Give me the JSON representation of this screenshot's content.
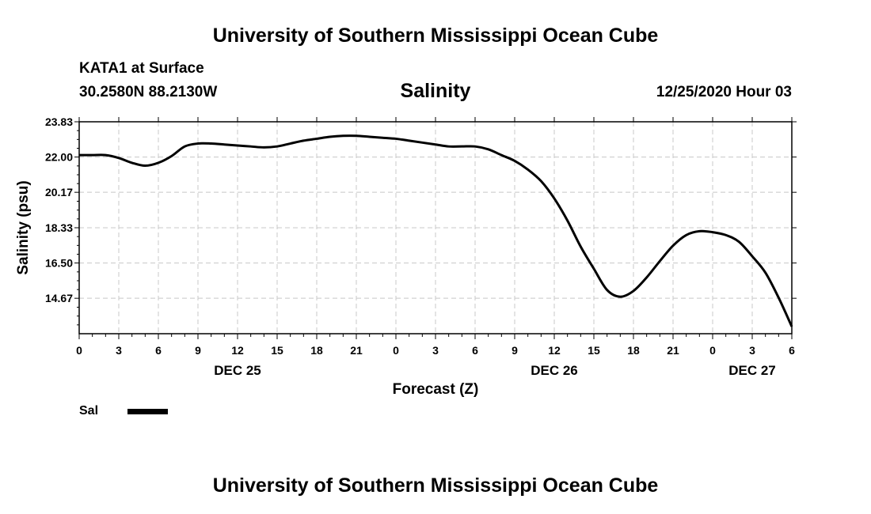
{
  "page": {
    "top_title": "University of Southern Mississippi Ocean Cube",
    "bottom_title": "University of Southern Mississippi Ocean Cube",
    "station_name": "KATA1 at Surface",
    "station_coords": "30.2580N 88.2130W",
    "chart_time": "12/25/2020 Hour 03"
  },
  "chart_data": {
    "type": "line",
    "title": "Salinity",
    "xlabel": "Forecast (Z)",
    "ylabel": "Salinity (psu)",
    "ylim": [
      12.83,
      23.83
    ],
    "yticks": [
      "23.83",
      "22.00",
      "20.17",
      "18.33",
      "16.50",
      "14.67"
    ],
    "xticks": [
      "0",
      "3",
      "6",
      "9",
      "12",
      "15",
      "18",
      "21",
      "0",
      "3",
      "6",
      "9",
      "12",
      "15",
      "18",
      "21",
      "0",
      "3",
      "6"
    ],
    "date_labels": [
      {
        "label": "DEC 25",
        "tick_index": 4
      },
      {
        "label": "DEC 26",
        "tick_index": 12
      },
      {
        "label": "DEC 27",
        "tick_index": 17
      }
    ],
    "grid": true,
    "legend": "bottom-left",
    "series": [
      {
        "name": "Sal",
        "color": "#000000",
        "x": [
          0,
          1,
          2,
          3,
          4,
          5,
          6,
          7,
          8,
          9,
          10,
          11,
          12,
          13,
          14,
          15,
          16,
          17,
          18,
          19,
          20,
          21,
          22,
          23,
          24,
          25,
          26,
          27,
          28,
          29,
          30,
          31,
          32,
          33,
          34,
          35,
          36,
          37,
          38,
          39,
          40,
          41,
          42,
          43,
          44,
          45,
          46,
          47,
          48,
          49,
          50,
          51,
          52,
          53,
          54
        ],
        "values": [
          22.1,
          22.1,
          22.1,
          21.95,
          21.7,
          21.55,
          21.7,
          22.05,
          22.55,
          22.7,
          22.7,
          22.65,
          22.6,
          22.55,
          22.5,
          22.55,
          22.7,
          22.85,
          22.95,
          23.05,
          23.1,
          23.1,
          23.05,
          23.0,
          22.95,
          22.85,
          22.75,
          22.65,
          22.55,
          22.55,
          22.55,
          22.4,
          22.1,
          21.8,
          21.35,
          20.75,
          19.85,
          18.7,
          17.35,
          16.2,
          15.1,
          14.75,
          15.05,
          15.75,
          16.6,
          17.4,
          17.95,
          18.15,
          18.1,
          17.95,
          17.6,
          16.85,
          16.0,
          14.7,
          13.2
        ]
      }
    ]
  }
}
